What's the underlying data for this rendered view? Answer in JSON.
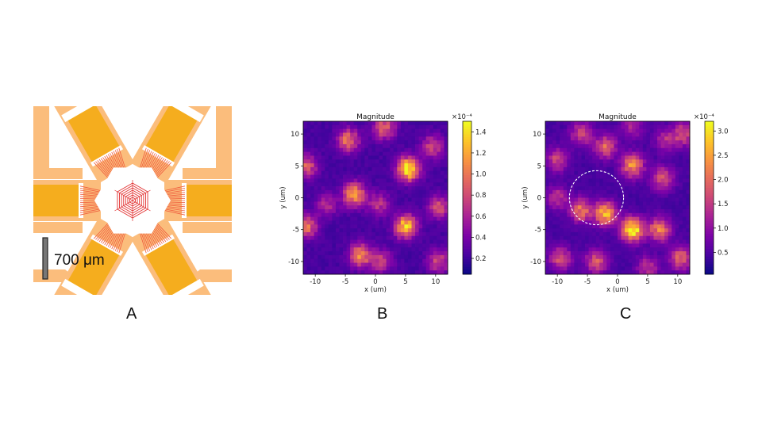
{
  "panel_a": {
    "letter": "A",
    "scale_bar_label": "700 μm",
    "colors": {
      "pad": "#f5ad1e",
      "arm": "#fbbd7c",
      "trace": "#ef5a3c",
      "center": "#e23030"
    }
  },
  "panel_b": {
    "letter": "B",
    "chart_data": {
      "type": "heatmap",
      "title": "Magnitude",
      "xlabel": "x (um)",
      "ylabel": "y (um)",
      "xlim": [
        -12,
        12
      ],
      "ylim": [
        -12,
        12
      ],
      "xticks": [
        -10,
        -5,
        0,
        5,
        10
      ],
      "yticks": [
        -10,
        -5,
        0,
        5,
        10
      ],
      "colormap": "plasma",
      "colorbar_range": [
        0.05,
        1.5
      ],
      "colorbar_ticks": [
        0.2,
        0.4,
        0.6,
        0.8,
        1.0,
        1.2,
        1.4
      ],
      "colorbar_ticklabels": [
        "0.2",
        "0.4",
        "0.6",
        "0.8",
        "1.0",
        "1.2",
        "1.4"
      ],
      "colorbar_exponent": "×10⁻⁴",
      "grid_size": 40,
      "peaks": [
        {
          "x": 5.5,
          "y": 4.5,
          "a": 1.3
        },
        {
          "x": -3.5,
          "y": 0.5,
          "a": 1.0
        },
        {
          "x": 5,
          "y": -4.5,
          "a": 1.1
        },
        {
          "x": -4.5,
          "y": 9,
          "a": 0.75
        },
        {
          "x": -2.5,
          "y": -9,
          "a": 0.85
        },
        {
          "x": 1.5,
          "y": 11,
          "a": 0.7
        },
        {
          "x": 9.5,
          "y": 8,
          "a": 0.55
        },
        {
          "x": -11.5,
          "y": 5,
          "a": 0.65
        },
        {
          "x": -11.5,
          "y": -4.5,
          "a": 0.75
        },
        {
          "x": 10.5,
          "y": -1.5,
          "a": 0.6
        },
        {
          "x": 10.5,
          "y": -10,
          "a": 0.55
        },
        {
          "x": 0.5,
          "y": -1,
          "a": 0.45
        },
        {
          "x": 1,
          "y": -10,
          "a": 0.5
        },
        {
          "x": -8,
          "y": -1,
          "a": 0.4
        }
      ]
    }
  },
  "panel_c": {
    "letter": "C",
    "chart_data": {
      "type": "heatmap",
      "title": "Magnitude",
      "xlabel": "x (um)",
      "ylabel": "y (um)",
      "xlim": [
        -12,
        12
      ],
      "ylim": [
        -12,
        12
      ],
      "xticks": [
        -10,
        -5,
        0,
        5,
        10
      ],
      "yticks": [
        -10,
        -5,
        0,
        5,
        10
      ],
      "colormap": "plasma",
      "colorbar_range": [
        0.05,
        3.2
      ],
      "colorbar_ticks": [
        0.5,
        1.0,
        1.5,
        2.0,
        2.5,
        3.0
      ],
      "colorbar_ticklabels": [
        "0.5",
        "1.0",
        "1.5",
        "2.0",
        "2.5",
        "3.0"
      ],
      "colorbar_exponent": "×10⁻⁴",
      "grid_size": 40,
      "circle_annotation": {
        "cx": -3.5,
        "cy": 0,
        "r": 4.5,
        "style": "dashed",
        "color": "#ffffff"
      },
      "peaks": [
        {
          "x": 2.5,
          "y": -5,
          "a": 3.0
        },
        {
          "x": 2.5,
          "y": 5,
          "a": 1.9
        },
        {
          "x": -2,
          "y": -2.5,
          "a": 2.3
        },
        {
          "x": -6,
          "y": -2,
          "a": 1.7
        },
        {
          "x": -2,
          "y": 8,
          "a": 1.5
        },
        {
          "x": -6,
          "y": 10,
          "a": 1.2
        },
        {
          "x": -10,
          "y": 6,
          "a": 1.2
        },
        {
          "x": 7,
          "y": -5,
          "a": 1.8
        },
        {
          "x": 7.5,
          "y": 3,
          "a": 1.4
        },
        {
          "x": 11,
          "y": 10,
          "a": 1.3
        },
        {
          "x": -9.5,
          "y": -9.5,
          "a": 1.3
        },
        {
          "x": -3.5,
          "y": -10,
          "a": 1.4
        },
        {
          "x": 10.5,
          "y": -9.5,
          "a": 1.5
        },
        {
          "x": 5,
          "y": -11,
          "a": 1.0
        },
        {
          "x": -10,
          "y": 0,
          "a": 1.0
        },
        {
          "x": 8,
          "y": 9,
          "a": 0.9
        },
        {
          "x": 2.5,
          "y": 11,
          "a": 0.8
        }
      ]
    }
  }
}
